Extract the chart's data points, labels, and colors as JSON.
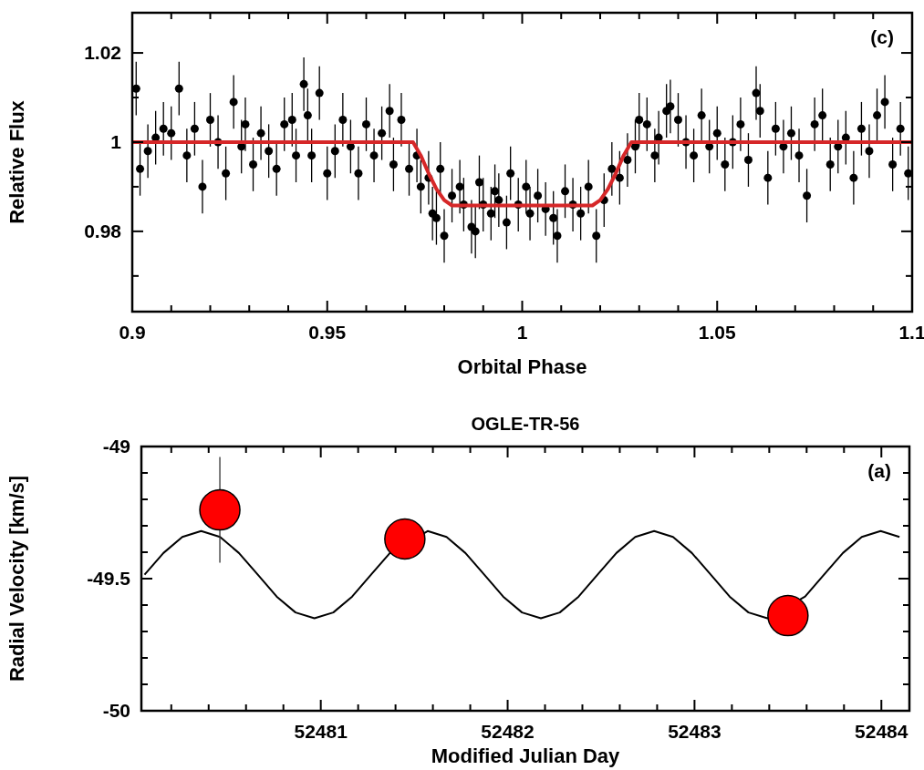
{
  "chart_data": [
    {
      "type": "scatter",
      "xlabel": "Orbital Phase",
      "ylabel": "Relative Flux",
      "annotations": [
        "(c)"
      ],
      "xlim": [
        0.9,
        1.1
      ],
      "ylim": [
        0.962,
        1.029
      ],
      "xticks": [
        0.9,
        {
          "value": 0.91,
          "label": null
        },
        {
          "value": 0.92,
          "label": null
        },
        {
          "value": 0.93,
          "label": null
        },
        {
          "value": 0.94,
          "label": null
        },
        0.95,
        {
          "value": 0.96,
          "label": null
        },
        {
          "value": 0.97,
          "label": null
        },
        {
          "value": 0.98,
          "label": null
        },
        {
          "value": 0.99,
          "label": null
        },
        1,
        {
          "value": 1.01,
          "label": null
        },
        {
          "value": 1.02,
          "label": null
        },
        {
          "value": 1.03,
          "label": null
        },
        {
          "value": 1.04,
          "label": null
        },
        1.05,
        {
          "value": 1.06,
          "label": null
        },
        {
          "value": 1.07,
          "label": null
        },
        {
          "value": 1.08,
          "label": null
        },
        {
          "value": 1.09,
          "label": null
        },
        1.1
      ],
      "yticks": [
        {
          "value": 0.97,
          "label": null
        },
        0.98,
        {
          "value": 0.99,
          "label": null
        },
        1,
        {
          "value": 1.01,
          "label": null
        },
        1.02
      ],
      "series": [
        {
          "marker": "circle",
          "color": "#000000",
          "x": [
            0.901,
            0.902,
            0.904,
            0.906,
            0.908,
            0.91,
            0.912,
            0.914,
            0.916,
            0.918,
            0.92,
            0.922,
            0.924,
            0.926,
            0.928,
            0.929,
            0.931,
            0.933,
            0.935,
            0.937,
            0.939,
            0.941,
            0.942,
            0.944,
            0.945,
            0.946,
            0.948,
            0.95,
            0.952,
            0.954,
            0.956,
            0.958,
            0.96,
            0.962,
            0.964,
            0.966,
            0.967,
            0.969,
            0.971,
            0.973,
            0.974,
            0.976,
            0.977,
            0.978,
            0.979,
            0.98,
            0.982,
            0.984,
            0.985,
            0.987,
            0.988,
            0.989,
            0.99,
            0.992,
            0.993,
            0.994,
            0.996,
            0.997,
            0.999,
            1.001,
            1.002,
            1.004,
            1.006,
            1.008,
            1.009,
            1.011,
            1.013,
            1.015,
            1.017,
            1.019,
            1.021,
            1.023,
            1.025,
            1.027,
            1.029,
            1.03,
            1.032,
            1.034,
            1.035,
            1.037,
            1.038,
            1.04,
            1.042,
            1.044,
            1.046,
            1.048,
            1.05,
            1.052,
            1.054,
            1.056,
            1.058,
            1.06,
            1.061,
            1.063,
            1.065,
            1.067,
            1.069,
            1.071,
            1.073,
            1.075,
            1.077,
            1.079,
            1.081,
            1.083,
            1.085,
            1.087,
            1.089,
            1.091,
            1.093,
            1.095,
            1.097,
            1.099
          ],
          "values": [
            1.012,
            0.994,
            0.998,
            1.001,
            1.003,
            1.002,
            1.012,
            0.997,
            1.003,
            0.99,
            1.005,
            1.0,
            0.993,
            1.009,
            0.999,
            1.004,
            0.995,
            1.002,
            0.998,
            0.994,
            1.004,
            1.005,
            0.997,
            1.013,
            1.006,
            0.997,
            1.011,
            0.993,
            0.998,
            1.005,
            0.999,
            0.993,
            1.004,
            0.997,
            1.002,
            1.007,
            0.995,
            1.005,
            0.994,
            0.997,
            0.99,
            0.992,
            0.984,
            0.983,
            0.994,
            0.979,
            0.988,
            0.99,
            0.986,
            0.981,
            0.98,
            0.991,
            0.986,
            0.984,
            0.989,
            0.987,
            0.982,
            0.993,
            0.986,
            0.99,
            0.984,
            0.988,
            0.985,
            0.983,
            0.979,
            0.989,
            0.986,
            0.984,
            0.99,
            0.979,
            0.987,
            0.994,
            0.992,
            0.996,
            0.999,
            1.005,
            1.004,
            0.997,
            1.001,
            1.007,
            1.008,
            1.005,
            1.0,
            0.997,
            1.006,
            0.999,
            1.002,
            0.995,
            1.0,
            1.004,
            0.996,
            1.011,
            1.007,
            0.992,
            1.003,
            0.999,
            1.002,
            0.997,
            0.988,
            1.004,
            1.006,
            0.995,
            0.999,
            1.001,
            0.992,
            1.003,
            0.998,
            1.006,
            1.009,
            0.995,
            1.003,
            0.993
          ],
          "errors": [
            0.006,
            0.006,
            0.006,
            0.006,
            0.006,
            0.006,
            0.006,
            0.006,
            0.006,
            0.006,
            0.006,
            0.006,
            0.006,
            0.006,
            0.006,
            0.006,
            0.006,
            0.006,
            0.006,
            0.006,
            0.006,
            0.006,
            0.006,
            0.006,
            0.006,
            0.006,
            0.006,
            0.006,
            0.006,
            0.006,
            0.006,
            0.006,
            0.006,
            0.006,
            0.006,
            0.006,
            0.006,
            0.006,
            0.006,
            0.006,
            0.006,
            0.006,
            0.006,
            0.006,
            0.006,
            0.006,
            0.006,
            0.006,
            0.006,
            0.006,
            0.006,
            0.006,
            0.006,
            0.006,
            0.006,
            0.006,
            0.006,
            0.006,
            0.006,
            0.006,
            0.006,
            0.006,
            0.006,
            0.006,
            0.006,
            0.006,
            0.006,
            0.006,
            0.006,
            0.006,
            0.006,
            0.006,
            0.006,
            0.006,
            0.006,
            0.006,
            0.006,
            0.006,
            0.006,
            0.006,
            0.006,
            0.006,
            0.006,
            0.006,
            0.006,
            0.006,
            0.006,
            0.006,
            0.006,
            0.006,
            0.006,
            0.006,
            0.006,
            0.006,
            0.006,
            0.006,
            0.006,
            0.006,
            0.006,
            0.006,
            0.006,
            0.006,
            0.006,
            0.006,
            0.006,
            0.006,
            0.006,
            0.006,
            0.006,
            0.006,
            0.006,
            0.006
          ]
        },
        {
          "type": "line",
          "color": "#d62728",
          "x": [
            0.9,
            0.972,
            0.974,
            0.976,
            0.978,
            0.98,
            0.982,
            1.018,
            1.02,
            1.022,
            1.024,
            1.026,
            1.028,
            1.1
          ],
          "values": [
            1,
            1,
            0.997,
            0.993,
            0.9895,
            0.987,
            0.9858,
            0.9858,
            0.987,
            0.9895,
            0.993,
            0.997,
            1,
            1
          ]
        }
      ]
    },
    {
      "type": "line",
      "title": "OGLE-TR-56",
      "xlabel": "Modified Julian Day",
      "ylabel": "Radial Velocity [km/s]",
      "annotations": [
        "(a)"
      ],
      "xlim": [
        52480.04,
        52484.15
      ],
      "ylim": [
        -50,
        -49
      ],
      "xticks": [
        {
          "value": 52480.2,
          "label": null
        },
        {
          "value": 52480.4,
          "label": null
        },
        {
          "value": 52480.6,
          "label": null
        },
        {
          "value": 52480.8,
          "label": null
        },
        52481,
        {
          "value": 52481.2,
          "label": null
        },
        {
          "value": 52481.4,
          "label": null
        },
        {
          "value": 52481.6,
          "label": null
        },
        {
          "value": 52481.8,
          "label": null
        },
        52482,
        {
          "value": 52482.2,
          "label": null
        },
        {
          "value": 52482.4,
          "label": null
        },
        {
          "value": 52482.6,
          "label": null
        },
        {
          "value": 52482.8,
          "label": null
        },
        52483,
        {
          "value": 52483.2,
          "label": null
        },
        {
          "value": 52483.4,
          "label": null
        },
        {
          "value": 52483.6,
          "label": null
        },
        {
          "value": 52483.8,
          "label": null
        },
        52484
      ],
      "yticks": [
        -50,
        {
          "value": -49.9,
          "label": null
        },
        {
          "value": -49.8,
          "label": null
        },
        {
          "value": -49.7,
          "label": null
        },
        {
          "value": -49.6,
          "label": null
        },
        -49.5,
        {
          "value": -49.4,
          "label": null
        },
        {
          "value": -49.3,
          "label": null
        },
        {
          "value": -49.2,
          "label": null
        },
        {
          "value": -49.1,
          "label": null
        },
        -49
      ],
      "series": [
        {
          "color": "#000000",
          "x": [
            52480.057,
            52480.158,
            52480.259,
            52480.36,
            52480.461,
            52480.562,
            52480.663,
            52480.764,
            52480.865,
            52480.966,
            52481.067,
            52481.168,
            52481.269,
            52481.37,
            52481.471,
            52481.572,
            52481.673,
            52481.774,
            52481.875,
            52481.976,
            52482.077,
            52482.178,
            52482.279,
            52482.38,
            52482.481,
            52482.582,
            52482.683,
            52482.784,
            52482.885,
            52482.986,
            52483.087,
            52483.188,
            52483.289,
            52483.39,
            52483.491,
            52483.592,
            52483.693,
            52483.794,
            52483.895,
            52483.996,
            52484.097
          ],
          "values": [
            -49.485,
            -49.403,
            -49.342,
            -49.32,
            -49.342,
            -49.403,
            -49.485,
            -49.568,
            -49.628,
            -49.65,
            -49.628,
            -49.568,
            -49.485,
            -49.403,
            null,
            -49.32,
            -49.342,
            -49.403,
            -49.485,
            -49.568,
            -49.628,
            -49.65,
            -49.628,
            -49.568,
            -49.485,
            -49.403,
            -49.342,
            -49.32,
            -49.342,
            -49.403,
            -49.485,
            -49.568,
            -49.628,
            -49.65,
            null,
            -49.568,
            -49.485,
            -49.403,
            -49.342,
            -49.32,
            -49.342
          ]
        },
        {
          "type": "scatter",
          "marker": "circle",
          "color": "#ff0000",
          "x": [
            52480.46,
            52481.45,
            52483.5
          ],
          "values": [
            -49.24,
            -49.35,
            -49.64
          ],
          "errors": [
            0.2,
            null,
            null
          ]
        }
      ]
    }
  ]
}
